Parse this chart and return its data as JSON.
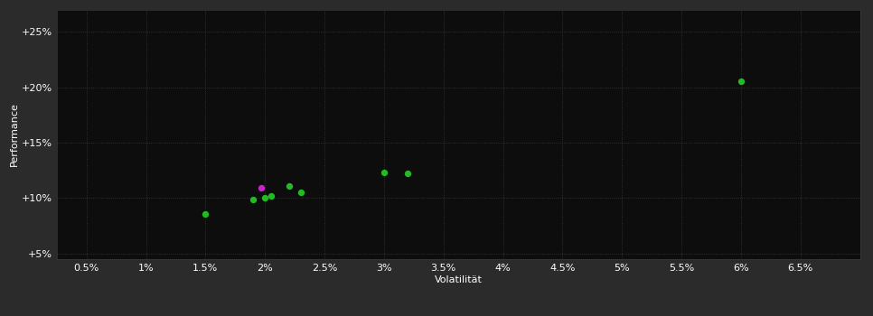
{
  "background_color": "#2b2b2b",
  "plot_bg_color": "#0d0d0d",
  "grid_color": "#3a3a3a",
  "text_color": "#ffffff",
  "xlabel": "Volatilität",
  "ylabel": "Performance",
  "xlim": [
    0.0025,
    0.07
  ],
  "ylim": [
    0.045,
    0.27
  ],
  "xticks": [
    0.005,
    0.01,
    0.015,
    0.02,
    0.025,
    0.03,
    0.035,
    0.04,
    0.045,
    0.05,
    0.055,
    0.06,
    0.065
  ],
  "yticks": [
    0.05,
    0.1,
    0.15,
    0.2,
    0.25
  ],
  "xtick_labels": [
    "0.5%",
    "1%",
    "1.5%",
    "2%",
    "2.5%",
    "3%",
    "3.5%",
    "4%",
    "4.5%",
    "5%",
    "5.5%",
    "6%",
    "6.5%"
  ],
  "ytick_labels": [
    "+5%",
    "+10%",
    "+15%",
    "+20%",
    "+25%"
  ],
  "green_points": [
    [
      0.015,
      0.086
    ],
    [
      0.019,
      0.099
    ],
    [
      0.02,
      0.1
    ],
    [
      0.0205,
      0.102
    ],
    [
      0.022,
      0.111
    ],
    [
      0.023,
      0.105
    ],
    [
      0.03,
      0.123
    ],
    [
      0.032,
      0.1225
    ],
    [
      0.06,
      0.205
    ]
  ],
  "magenta_points": [
    [
      0.0197,
      0.1095
    ]
  ],
  "green_color": "#22bb22",
  "magenta_color": "#cc22cc",
  "marker_size": 28,
  "xlabel_fontsize": 8,
  "ylabel_fontsize": 8,
  "tick_fontsize": 8
}
